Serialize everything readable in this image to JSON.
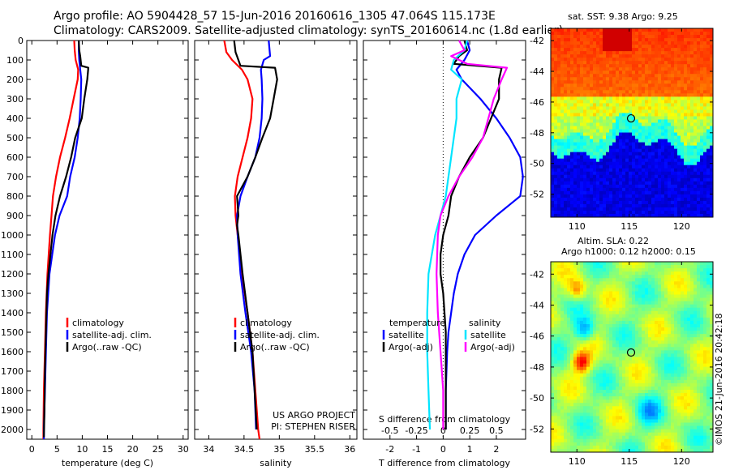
{
  "header": {
    "line1": "Argo profile: AO 5904428_57 15-Jun-2016 20160616_1305 47.064S 115.173E",
    "line2": "Climatology: CARS2009. Satellite-adjusted climatology: synTS_20160614.nc (1.8d earlier)"
  },
  "depth_ticks": [
    "0",
    "100",
    "200",
    "300",
    "400",
    "500",
    "600",
    "700",
    "800",
    "900",
    "1000",
    "1100",
    "1200",
    "1300",
    "1400",
    "1500",
    "1600",
    "1700",
    "1800",
    "1900",
    "2000"
  ],
  "colors": {
    "climatology": "#ff0000",
    "satellite": "#0000ff",
    "argo": "#000000",
    "sal_satellite": "#00e5ff",
    "sal_argo": "#ff00ff"
  },
  "chart_data": [
    {
      "type": "line",
      "id": "temperature",
      "xlabel": "temperature (deg C)",
      "xlim": [
        -1,
        31
      ],
      "ylim": [
        0,
        2050
      ],
      "y_inverted": true,
      "xticks": [
        "0",
        "5",
        "10",
        "15",
        "20",
        "25",
        "30"
      ],
      "legend": [
        "climatology",
        "satellite-adj. clim.",
        "Argo(..raw -QC)"
      ],
      "series": [
        {
          "name": "climatology",
          "color": "#ff0000",
          "depth": [
            0,
            50,
            100,
            150,
            200,
            300,
            400,
            500,
            600,
            700,
            800,
            900,
            1000,
            1200,
            1400,
            1600,
            1800,
            2000,
            2050
          ],
          "values": [
            8.4,
            8.5,
            8.7,
            9.2,
            9.1,
            8.3,
            7.5,
            6.6,
            5.6,
            4.8,
            4.2,
            3.9,
            3.6,
            3.1,
            2.8,
            2.6,
            2.4,
            2.3,
            2.3
          ]
        },
        {
          "name": "satellite-adj. clim.",
          "color": "#0000ff",
          "depth": [
            0,
            50,
            100,
            150,
            200,
            300,
            400,
            500,
            600,
            700,
            800,
            900,
            1000,
            1200,
            1400,
            1600,
            1800,
            2000,
            2050
          ],
          "values": [
            9.3,
            9.3,
            9.4,
            9.6,
            9.8,
            9.7,
            9.5,
            9.1,
            8.5,
            7.6,
            7.0,
            5.5,
            4.6,
            3.5,
            3.0,
            2.8,
            2.6,
            2.4,
            2.4
          ]
        },
        {
          "name": "Argo(..raw -QC)",
          "color": "#000000",
          "depth": [
            0,
            50,
            80,
            130,
            140,
            200,
            300,
            400,
            500,
            600,
            700,
            800,
            900,
            1000,
            1100,
            1200,
            1300,
            1500,
            1700,
            1900,
            2040
          ],
          "values": [
            9.3,
            9.4,
            9.6,
            9.8,
            11.2,
            11.0,
            10.4,
            9.9,
            8.6,
            7.8,
            6.8,
            5.6,
            4.7,
            4.1,
            3.7,
            3.3,
            3.0,
            2.8,
            2.6,
            2.5,
            2.4
          ]
        }
      ]
    },
    {
      "type": "line",
      "id": "salinity",
      "xlabel": "salinity",
      "xlim": [
        33.8,
        36.1
      ],
      "ylim": [
        0,
        2050
      ],
      "y_inverted": true,
      "xticks": [
        "34",
        "34.5",
        "35",
        "35.5",
        "36"
      ],
      "legend": [
        "climatology",
        "satellite-adj. clim.",
        "Argo(..raw -QC)"
      ],
      "annotation": [
        "US ARGO PROJECT",
        "PI: STEPHEN RISER"
      ],
      "series": [
        {
          "name": "climatology",
          "color": "#ff0000",
          "depth": [
            0,
            60,
            100,
            150,
            200,
            300,
            400,
            500,
            600,
            700,
            800,
            900,
            1000,
            1200,
            1400,
            1600,
            1800,
            2000,
            2050
          ],
          "values": [
            34.22,
            34.25,
            34.33,
            34.47,
            34.55,
            34.62,
            34.6,
            34.55,
            34.48,
            34.41,
            34.37,
            34.38,
            34.41,
            34.47,
            34.55,
            34.62,
            34.66,
            34.7,
            34.72
          ]
        },
        {
          "name": "satellite-adj. clim.",
          "color": "#0000ff",
          "depth": [
            0,
            80,
            100,
            150,
            200,
            300,
            400,
            500,
            600,
            700,
            800,
            900,
            1000,
            1200,
            1400,
            1600,
            1800,
            1900,
            2000
          ],
          "values": [
            34.85,
            34.87,
            34.78,
            34.74,
            34.75,
            34.76,
            34.75,
            34.72,
            34.66,
            34.55,
            34.45,
            34.4,
            34.41,
            34.45,
            34.52,
            34.6,
            34.65,
            34.66,
            34.67
          ]
        },
        {
          "name": "Argo(..raw -QC)",
          "color": "#000000",
          "depth": [
            0,
            60,
            80,
            130,
            140,
            200,
            300,
            400,
            500,
            600,
            700,
            800,
            900,
            950,
            1000,
            1100,
            1200,
            1400,
            1600,
            1800,
            2000
          ],
          "values": [
            34.36,
            34.38,
            34.4,
            34.45,
            34.94,
            34.97,
            34.92,
            34.87,
            34.76,
            34.66,
            34.55,
            34.4,
            34.42,
            34.4,
            34.42,
            34.45,
            34.48,
            34.55,
            34.62,
            34.65,
            34.68
          ]
        }
      ]
    },
    {
      "type": "line",
      "id": "difference",
      "xlabel": "T difference from climatology",
      "top_xlabel": "S difference from climatology",
      "xlim": [
        -3,
        3.1
      ],
      "ylim": [
        0,
        2050
      ],
      "y_inverted": true,
      "xticks": [
        "-2",
        "-1",
        "0",
        "1",
        "2"
      ],
      "top_xticks": [
        "-0.5",
        "-0.25",
        "0",
        "0.25",
        "0.5"
      ],
      "legend": {
        "temperature": [
          "satellite",
          "Argo(-adj)"
        ],
        "salinity": [
          "satellite",
          "Argo(-adj)"
        ],
        "headers": [
          "temperature",
          "salinity"
        ]
      },
      "series": [
        {
          "name": "satellite",
          "color": "#0000ff",
          "depth": [
            0,
            50,
            100,
            150,
            200,
            300,
            400,
            500,
            600,
            700,
            800,
            900,
            1000,
            1100,
            1200,
            1300,
            1400,
            1500,
            1600,
            1800,
            2000
          ],
          "values": [
            0.9,
            1.0,
            0.8,
            0.5,
            0.7,
            1.4,
            2.0,
            2.5,
            2.9,
            3.0,
            2.9,
            2.0,
            1.2,
            0.8,
            0.55,
            0.4,
            0.3,
            0.2,
            0.15,
            0.1,
            0.1
          ]
        },
        {
          "name": "Argo(-adj)",
          "color": "#000000",
          "depth": [
            0,
            50,
            80,
            120,
            140,
            200,
            300,
            400,
            500,
            600,
            700,
            800,
            900,
            1000,
            1100,
            1200,
            1300,
            1400,
            1500,
            1600,
            1800,
            2000
          ],
          "values": [
            0.8,
            0.9,
            0.6,
            0.4,
            2.2,
            2.1,
            2.1,
            1.8,
            1.5,
            1.0,
            0.6,
            0.3,
            0.2,
            0.0,
            -0.1,
            -0.1,
            0.0,
            0.05,
            0.1,
            0.1,
            0.1,
            0.1
          ]
        },
        {
          "name": "satellite",
          "color": "#00e5ff",
          "depth": [
            0,
            50,
            100,
            150,
            200,
            300,
            400,
            500,
            600,
            700,
            800,
            900,
            1000,
            1200,
            1400,
            1600,
            1800,
            2000
          ],
          "values": [
            0.9,
            0.8,
            0.4,
            0.3,
            0.7,
            0.5,
            0.5,
            0.4,
            0.3,
            0.2,
            0.1,
            -0.1,
            -0.3,
            -0.55,
            -0.6,
            -0.6,
            -0.55,
            -0.5
          ]
        },
        {
          "name": "Argo(-adj)",
          "color": "#ff00ff",
          "depth": [
            0,
            50,
            80,
            120,
            140,
            200,
            300,
            400,
            500,
            600,
            700,
            800,
            900,
            1000,
            1200,
            1400,
            1600,
            1800,
            2000
          ],
          "values": [
            0.6,
            0.8,
            0.3,
            0.9,
            2.4,
            2.2,
            1.9,
            1.7,
            1.5,
            1.1,
            0.6,
            0.2,
            -0.1,
            -0.2,
            -0.25,
            -0.2,
            -0.1,
            0.0,
            0.0
          ]
        }
      ]
    },
    {
      "type": "heatmap",
      "id": "sst_map",
      "title": "sat. SST: 9.38 Argo: 9.25",
      "xticks": [
        "110",
        "115",
        "120"
      ],
      "yticks": [
        "-42",
        "-44",
        "-46",
        "-48",
        "-50",
        "-52"
      ],
      "xlim": [
        107.5,
        123
      ],
      "ylim": [
        -53.5,
        -41.2
      ],
      "marker": {
        "lon": 115.173,
        "lat": -47.064
      }
    },
    {
      "type": "heatmap",
      "id": "sla_map",
      "title_lines": [
        "Altim. SLA: 0.22",
        "Argo h1000: 0.12 h2000: 0.15"
      ],
      "xticks": [
        "110",
        "115",
        "120"
      ],
      "yticks": [
        "-42",
        "-44",
        "-46",
        "-48",
        "-50",
        "-52"
      ],
      "xlim": [
        107.5,
        123
      ],
      "ylim": [
        -53.5,
        -41.2
      ],
      "marker": {
        "lon": 115.173,
        "lat": -47.064
      }
    }
  ],
  "credit": "©IMOS 21-Jun-2016 20:42:18"
}
